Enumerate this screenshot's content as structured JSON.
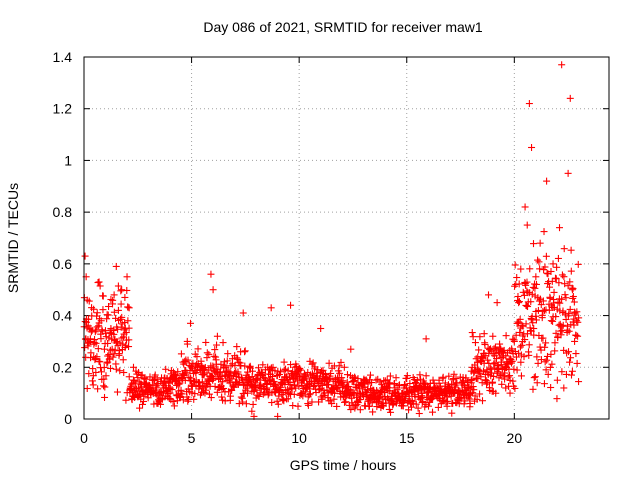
{
  "chart_data": {
    "type": "scatter",
    "title": "Day 086 of 2021, SRMTID for receiver maw1",
    "xlabel": "GPS time / hours",
    "ylabel": "SRMTID / TECUs",
    "xlim": [
      0,
      24.4
    ],
    "ylim": [
      0,
      1.4
    ],
    "x_ticks": [
      0,
      5,
      10,
      15,
      20
    ],
    "x_tick_labels": [
      "0",
      "5",
      "10",
      "15",
      "20"
    ],
    "y_ticks": [
      0,
      0.2,
      0.4,
      0.6,
      0.8,
      1.0,
      1.2,
      1.4
    ],
    "y_tick_labels": [
      "0",
      "0.2",
      "0.4",
      "0.6",
      "0.8",
      "1",
      "1.2",
      "1.4"
    ],
    "grid": true,
    "marker": "+",
    "series": [
      {
        "name": "maw1",
        "color": "#ff0000",
        "description_of_trend": [
          {
            "x_range": [
              0,
              2.1
            ],
            "level": 0.3,
            "spread": 0.15
          },
          {
            "x_range": [
              2.1,
              4.5
            ],
            "level": 0.12,
            "spread": 0.05
          },
          {
            "x_range": [
              4.5,
              7.5
            ],
            "level": 0.17,
            "spread": 0.08
          },
          {
            "x_range": [
              7.5,
              12
            ],
            "level": 0.14,
            "spread": 0.06
          },
          {
            "x_range": [
              12,
              18
            ],
            "level": 0.1,
            "spread": 0.05
          },
          {
            "x_range": [
              18,
              20
            ],
            "level": 0.2,
            "spread": 0.08
          },
          {
            "x_range": [
              20,
              23
            ],
            "level": 0.4,
            "spread": 0.2
          }
        ],
        "points": [
          [
            0.05,
            0.63
          ],
          [
            0.1,
            0.55
          ],
          [
            0.15,
            0.46
          ],
          [
            0.2,
            0.36
          ],
          [
            0.3,
            0.3
          ],
          [
            0.45,
            0.24
          ],
          [
            0.55,
            0.18
          ],
          [
            0.7,
            0.53
          ],
          [
            0.8,
            0.38
          ],
          [
            0.95,
            0.27
          ],
          [
            1.1,
            0.22
          ],
          [
            1.25,
            0.35
          ],
          [
            1.4,
            0.48
          ],
          [
            1.5,
            0.59
          ],
          [
            1.6,
            0.42
          ],
          [
            1.75,
            0.5
          ],
          [
            1.9,
            0.47
          ],
          [
            2.0,
            0.55
          ],
          [
            2.1,
            0.43
          ],
          [
            2.3,
            0.2
          ],
          [
            2.5,
            0.16
          ],
          [
            2.8,
            0.14
          ],
          [
            3.1,
            0.11
          ],
          [
            3.4,
            0.09
          ],
          [
            3.7,
            0.12
          ],
          [
            4.0,
            0.1
          ],
          [
            4.3,
            0.13
          ],
          [
            4.6,
            0.22
          ],
          [
            4.8,
            0.3
          ],
          [
            4.95,
            0.37
          ],
          [
            5.2,
            0.18
          ],
          [
            5.5,
            0.12
          ],
          [
            5.8,
            0.25
          ],
          [
            5.9,
            0.56
          ],
          [
            6.0,
            0.5
          ],
          [
            6.2,
            0.32
          ],
          [
            6.5,
            0.2
          ],
          [
            6.8,
            0.14
          ],
          [
            7.1,
            0.28
          ],
          [
            7.4,
            0.41
          ],
          [
            7.6,
            0.1
          ],
          [
            7.8,
            0.03
          ],
          [
            7.9,
            0.01
          ],
          [
            8.2,
            0.17
          ],
          [
            8.5,
            0.12
          ],
          [
            8.7,
            0.43
          ],
          [
            9.0,
            0.01
          ],
          [
            9.3,
            0.22
          ],
          [
            9.6,
            0.44
          ],
          [
            9.8,
            0.2
          ],
          [
            10.1,
            0.14
          ],
          [
            10.4,
            0.18
          ],
          [
            10.7,
            0.13
          ],
          [
            11.0,
            0.35
          ],
          [
            11.2,
            0.09
          ],
          [
            11.5,
            0.12
          ],
          [
            11.8,
            0.16
          ],
          [
            12.1,
            0.2
          ],
          [
            12.4,
            0.27
          ],
          [
            12.7,
            0.1
          ],
          [
            13.0,
            0.15
          ],
          [
            13.3,
            0.08
          ],
          [
            13.6,
            0.11
          ],
          [
            13.9,
            0.06
          ],
          [
            14.2,
            0.14
          ],
          [
            14.5,
            0.09
          ],
          [
            14.8,
            0.1
          ],
          [
            15.1,
            0.07
          ],
          [
            15.4,
            0.12
          ],
          [
            15.7,
            0.09
          ],
          [
            15.9,
            0.31
          ],
          [
            16.2,
            0.08
          ],
          [
            16.5,
            0.15
          ],
          [
            16.8,
            0.1
          ],
          [
            17.1,
            0.06
          ],
          [
            17.4,
            0.11
          ],
          [
            17.7,
            0.07
          ],
          [
            18.0,
            0.14
          ],
          [
            18.3,
            0.24
          ],
          [
            18.6,
            0.33
          ],
          [
            18.8,
            0.48
          ],
          [
            19.0,
            0.32
          ],
          [
            19.2,
            0.45
          ],
          [
            19.4,
            0.22
          ],
          [
            19.6,
            0.12
          ],
          [
            19.8,
            0.1
          ],
          [
            20.0,
            0.3
          ],
          [
            20.2,
            0.45
          ],
          [
            20.3,
            0.58
          ],
          [
            20.5,
            0.82
          ],
          [
            20.6,
            0.75
          ],
          [
            20.7,
            1.22
          ],
          [
            20.8,
            1.05
          ],
          [
            20.9,
            0.35
          ],
          [
            21.0,
            0.55
          ],
          [
            21.2,
            0.68
          ],
          [
            21.4,
            0.42
          ],
          [
            21.5,
            0.92
          ],
          [
            21.7,
            0.25
          ],
          [
            21.8,
            0.6
          ],
          [
            22.0,
            0.15
          ],
          [
            22.1,
            0.74
          ],
          [
            22.2,
            1.37
          ],
          [
            22.3,
            0.12
          ],
          [
            22.5,
            0.95
          ],
          [
            22.6,
            1.24
          ],
          [
            22.7,
            0.5
          ],
          [
            22.8,
            0.3
          ]
        ]
      }
    ]
  }
}
